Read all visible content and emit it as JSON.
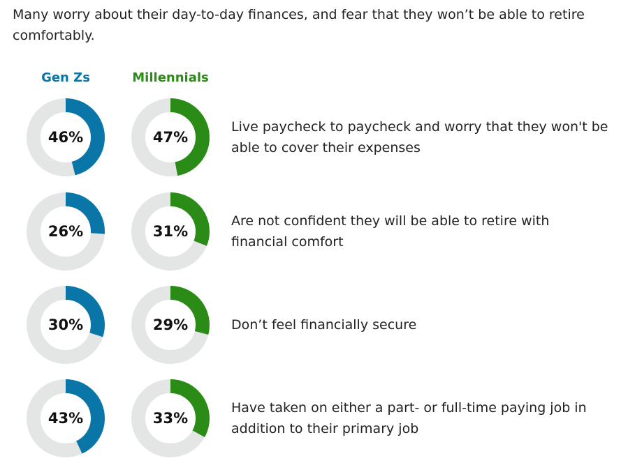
{
  "intro_text": "Many worry about their day-to-day finances, and fear that they won’t be able to retire comfortably.",
  "colors": {
    "genz": "#0a76a8",
    "millennials": "#2a8c16",
    "track": "#e4e6e6"
  },
  "chart_data": {
    "type": "donut",
    "unit": "%",
    "series": [
      {
        "name": "Gen Zs",
        "values": [
          46,
          26,
          30,
          43
        ]
      },
      {
        "name": "Millennials",
        "values": [
          47,
          31,
          29,
          33
        ]
      }
    ],
    "categories": [
      "Live paycheck to paycheck and worry that they won't be able to cover their expenses",
      "Are not confident they will be able to retire with financial comfort",
      "Don’t feel financially secure",
      "Have taken on either a part- or full-time paying job in addition to their primary job"
    ]
  }
}
